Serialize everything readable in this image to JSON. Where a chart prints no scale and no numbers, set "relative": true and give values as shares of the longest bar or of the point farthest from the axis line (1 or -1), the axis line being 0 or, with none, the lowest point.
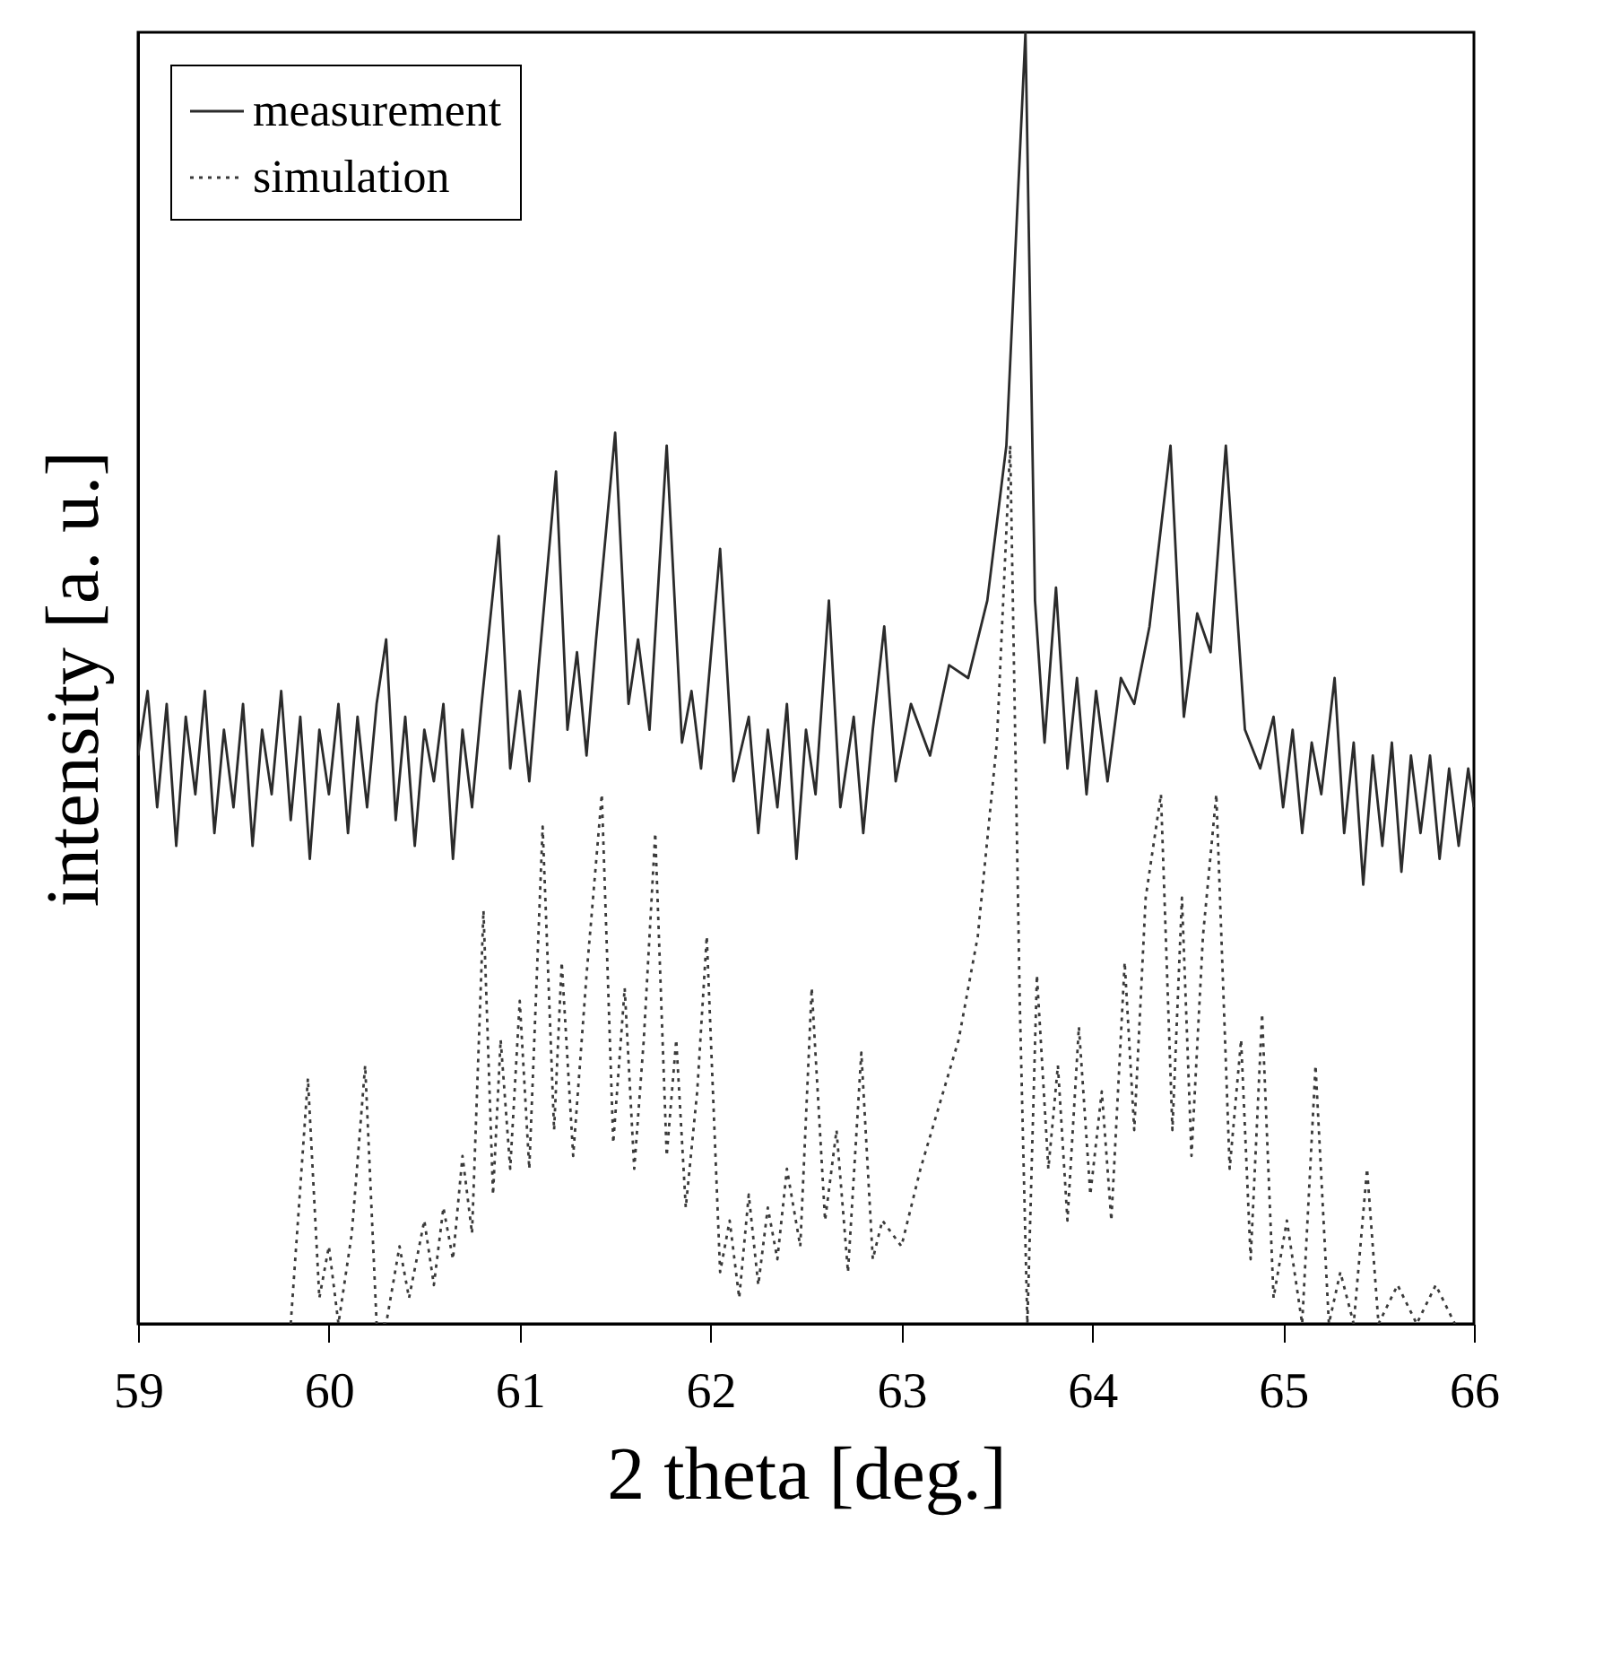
{
  "chart_data": {
    "type": "line",
    "xlabel": "2 theta [deg.]",
    "ylabel": "intensity [a. u.]",
    "relative": true,
    "xlim": [
      59,
      66
    ],
    "xticks": [
      59,
      60,
      61,
      62,
      63,
      64,
      65,
      66
    ],
    "tick_labels": "x",
    "legend": "top left",
    "series": [
      {
        "name": "measurement",
        "color": "#2b2b2b",
        "line_style": "solid",
        "x": [
          59.0,
          59.05,
          59.1,
          59.15,
          59.2,
          59.25,
          59.3,
          59.35,
          59.4,
          59.45,
          59.5,
          59.55,
          59.6,
          59.65,
          59.7,
          59.75,
          59.8,
          59.85,
          59.9,
          59.95,
          60.0,
          60.05,
          60.1,
          60.15,
          60.2,
          60.25,
          60.3,
          60.35,
          60.4,
          60.45,
          60.5,
          60.55,
          60.6,
          60.65,
          60.7,
          60.75,
          60.8,
          60.89,
          60.95,
          61.0,
          61.05,
          61.1,
          61.19,
          61.25,
          61.3,
          61.35,
          61.4,
          61.5,
          61.57,
          61.62,
          61.68,
          61.77,
          61.85,
          61.9,
          61.95,
          62.05,
          62.12,
          62.2,
          62.25,
          62.3,
          62.35,
          62.4,
          62.45,
          62.5,
          62.55,
          62.62,
          62.68,
          62.75,
          62.8,
          62.85,
          62.91,
          62.97,
          63.05,
          63.15,
          63.25,
          63.35,
          63.45,
          63.55,
          63.65,
          63.7,
          63.75,
          63.81,
          63.87,
          63.92,
          63.97,
          64.02,
          64.08,
          64.15,
          64.22,
          64.3,
          64.41,
          64.48,
          64.55,
          64.62,
          64.7,
          64.8,
          64.88,
          64.95,
          65.0,
          65.05,
          65.1,
          65.15,
          65.2,
          65.27,
          65.32,
          65.37,
          65.42,
          65.47,
          65.52,
          65.57,
          65.62,
          65.67,
          65.72,
          65.77,
          65.82,
          65.87,
          65.92,
          65.97,
          66.0
        ],
        "values": [
          0.44,
          0.49,
          0.4,
          0.48,
          0.37,
          0.47,
          0.41,
          0.49,
          0.38,
          0.46,
          0.4,
          0.48,
          0.37,
          0.46,
          0.41,
          0.49,
          0.39,
          0.47,
          0.36,
          0.46,
          0.41,
          0.48,
          0.38,
          0.47,
          0.4,
          0.48,
          0.53,
          0.39,
          0.47,
          0.37,
          0.46,
          0.42,
          0.48,
          0.36,
          0.46,
          0.4,
          0.48,
          0.61,
          0.43,
          0.49,
          0.42,
          0.51,
          0.66,
          0.46,
          0.52,
          0.44,
          0.53,
          0.69,
          0.48,
          0.53,
          0.46,
          0.68,
          0.45,
          0.49,
          0.43,
          0.6,
          0.42,
          0.47,
          0.38,
          0.46,
          0.4,
          0.48,
          0.36,
          0.46,
          0.41,
          0.56,
          0.4,
          0.47,
          0.38,
          0.46,
          0.54,
          0.42,
          0.48,
          0.44,
          0.51,
          0.5,
          0.56,
          0.68,
          1.0,
          0.56,
          0.45,
          0.57,
          0.43,
          0.5,
          0.41,
          0.49,
          0.42,
          0.5,
          0.48,
          0.54,
          0.68,
          0.47,
          0.55,
          0.52,
          0.68,
          0.46,
          0.43,
          0.47,
          0.4,
          0.46,
          0.38,
          0.45,
          0.41,
          0.5,
          0.38,
          0.45,
          0.34,
          0.44,
          0.37,
          0.45,
          0.35,
          0.44,
          0.38,
          0.44,
          0.36,
          0.43,
          0.37,
          0.43,
          0.4
        ]
      },
      {
        "name": "simulation",
        "color": "#3a3a3a",
        "line_style": "dotted",
        "x": [
          59.8,
          59.89,
          59.95,
          60.0,
          60.05,
          60.12,
          60.19,
          60.25,
          60.3,
          60.37,
          60.42,
          60.5,
          60.55,
          60.6,
          60.65,
          60.7,
          60.75,
          60.81,
          60.86,
          60.9,
          60.95,
          61.0,
          61.05,
          61.12,
          61.18,
          61.22,
          61.28,
          61.35,
          61.43,
          61.49,
          61.55,
          61.6,
          61.65,
          61.71,
          61.77,
          61.82,
          61.87,
          61.93,
          61.98,
          62.05,
          62.1,
          62.15,
          62.2,
          62.25,
          62.3,
          62.35,
          62.4,
          62.47,
          62.53,
          62.6,
          62.66,
          62.72,
          62.79,
          62.85,
          62.9,
          63.0,
          63.1,
          63.2,
          63.3,
          63.4,
          63.5,
          63.57,
          63.62,
          63.66,
          63.71,
          63.77,
          63.82,
          63.87,
          63.93,
          63.99,
          64.05,
          64.1,
          64.17,
          64.22,
          64.28,
          64.36,
          64.42,
          64.47,
          64.52,
          64.58,
          64.65,
          64.72,
          64.78,
          64.83,
          64.89,
          64.95,
          65.02,
          65.1,
          65.17,
          65.24,
          65.3,
          65.37,
          65.44,
          65.5,
          65.6,
          65.7,
          65.8,
          65.9
        ],
        "values": [
          0.0,
          0.19,
          0.02,
          0.06,
          0.0,
          0.07,
          0.2,
          0.0,
          0.0,
          0.06,
          0.02,
          0.08,
          0.03,
          0.09,
          0.05,
          0.13,
          0.07,
          0.32,
          0.1,
          0.22,
          0.12,
          0.25,
          0.12,
          0.385,
          0.15,
          0.28,
          0.13,
          0.27,
          0.41,
          0.14,
          0.26,
          0.12,
          0.22,
          0.38,
          0.13,
          0.22,
          0.09,
          0.18,
          0.3,
          0.04,
          0.08,
          0.02,
          0.1,
          0.03,
          0.09,
          0.05,
          0.12,
          0.06,
          0.26,
          0.08,
          0.15,
          0.04,
          0.21,
          0.05,
          0.08,
          0.06,
          0.12,
          0.17,
          0.22,
          0.3,
          0.45,
          0.68,
          0.25,
          0.0,
          0.27,
          0.12,
          0.2,
          0.08,
          0.23,
          0.1,
          0.18,
          0.08,
          0.28,
          0.15,
          0.33,
          0.41,
          0.15,
          0.33,
          0.13,
          0.3,
          0.41,
          0.12,
          0.22,
          0.05,
          0.24,
          0.02,
          0.08,
          0.0,
          0.2,
          0.0,
          0.04,
          0.0,
          0.12,
          0.0,
          0.03,
          0.0,
          0.03,
          0.0
        ]
      }
    ]
  }
}
